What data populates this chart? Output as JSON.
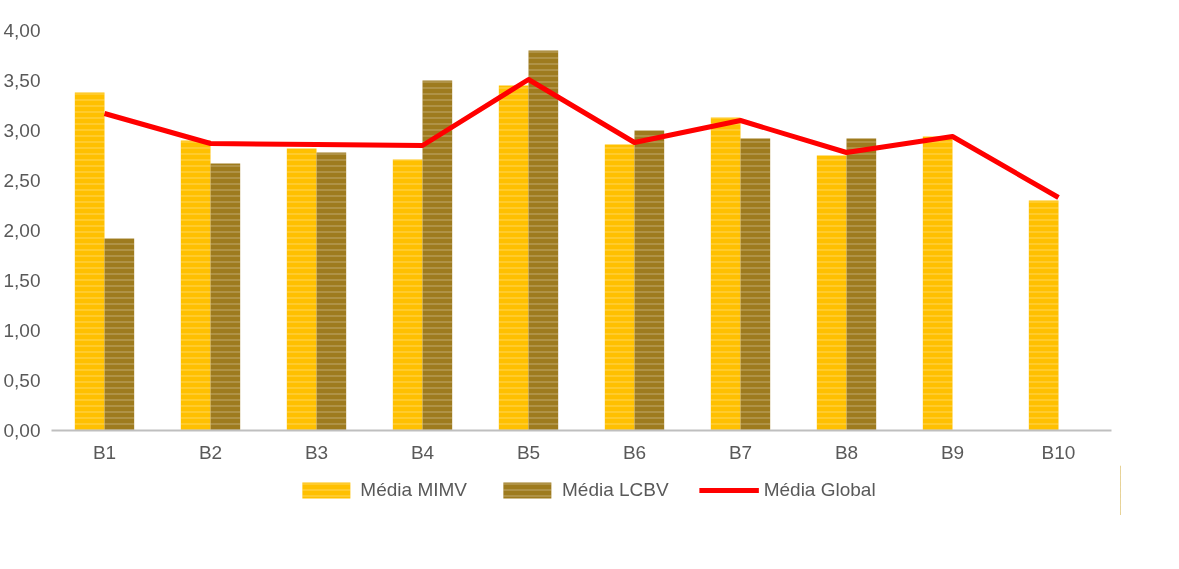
{
  "chart_data": {
    "type": "bar",
    "categories": [
      "B1",
      "B2",
      "B3",
      "B4",
      "B5",
      "B6",
      "B7",
      "B8",
      "B9",
      "B10"
    ],
    "series": [
      {
        "name": "Média MIMV",
        "color": "#ffc000",
        "values": [
          3.38,
          2.9,
          2.82,
          2.71,
          3.45,
          2.86,
          3.13,
          2.75,
          2.94,
          2.3
        ]
      },
      {
        "name": "Média LCBV",
        "color": "#9e7b1e",
        "values": [
          1.92,
          2.67,
          2.78,
          3.5,
          3.8,
          3.0,
          2.92,
          2.92,
          null,
          null
        ]
      },
      {
        "name": "Média Global",
        "type": "line",
        "color": "#ff0000",
        "values": [
          3.17,
          2.87,
          2.86,
          2.85,
          3.51,
          2.88,
          3.1,
          2.78,
          2.94,
          2.33
        ]
      }
    ],
    "ylim": [
      0,
      4
    ],
    "yticks": [
      {
        "value": 0,
        "label": "0,00"
      },
      {
        "value": 0.5,
        "label": "0,50"
      },
      {
        "value": 1,
        "label": "1,00"
      },
      {
        "value": 1.5,
        "label": "1,50"
      },
      {
        "value": 2,
        "label": "2,00"
      },
      {
        "value": 2.5,
        "label": "2,50"
      },
      {
        "value": 3,
        "label": "3,00"
      },
      {
        "value": 3.5,
        "label": "3,50"
      },
      {
        "value": 4,
        "label": "4,00"
      }
    ],
    "legend": "bottom"
  }
}
